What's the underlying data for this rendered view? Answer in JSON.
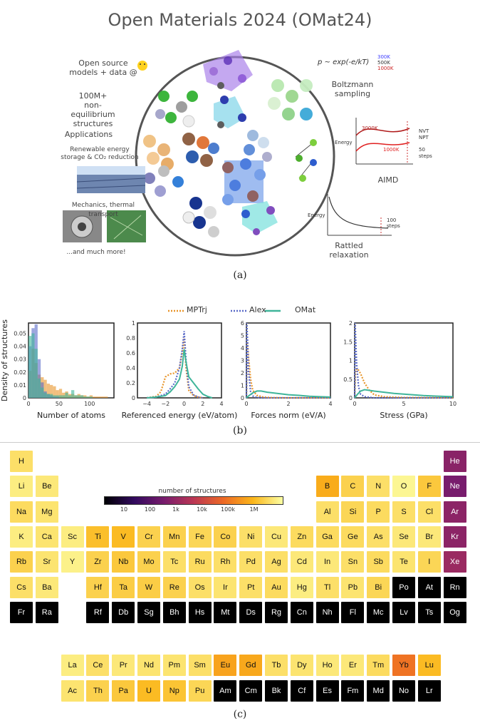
{
  "panel_a": {
    "title": "Open Materials 2024 (OMat24)",
    "open_source": "Open source\nmodels + data  @",
    "structures": "100M+\nnon-equilibrium\nstructures",
    "applications": "Applications",
    "renewable": "Renewable energy\nstorage & CO₂ reduction",
    "mechanics": "Mechanics, thermal transport",
    "more": "...and much more!",
    "boltzmann_formula": "p ~ exp(-e/kT)",
    "temps": [
      "300K",
      "500K",
      "1000K"
    ],
    "boltzmann": "Boltzmann\nsampling",
    "aimd_temps": [
      "3000K",
      "1000K"
    ],
    "nvt": "NVT\nNPT",
    "steps50": "50\nsteps",
    "energy": "Energy",
    "aimd": "AIMD",
    "steps100": "100\nsteps",
    "rattled": "Rattled\nrelaxation",
    "caption": "(a)",
    "colors": {
      "300K": "#3b3bff",
      "500K": "#333333",
      "1000K": "#cc2222"
    }
  },
  "panel_b": {
    "caption": "(b)",
    "legend": [
      "MPTrj",
      "Alex",
      "OMat"
    ],
    "colors": {
      "MPTrj": "#e8952a",
      "Alex": "#5a6bc8",
      "OMat": "#3fb59a"
    },
    "y_shared_label": "Density of structures"
  },
  "chart_data": [
    {
      "type": "bar",
      "xlabel": "Number of atoms",
      "ylabel": "Density of structures",
      "xlim": [
        0,
        140
      ],
      "ylim": [
        0,
        0.058
      ],
      "xticks": [
        "0",
        "50",
        "100"
      ],
      "yticks": [
        "0",
        "0.01",
        "0.02",
        "0.03",
        "0.04",
        "0.05"
      ],
      "bin_width": 5,
      "bin_starts": [
        0,
        5,
        10,
        15,
        20,
        25,
        30,
        35,
        40,
        45,
        50,
        55,
        60,
        65,
        70,
        75,
        80,
        85,
        90,
        95,
        100,
        105,
        110,
        115,
        120,
        125
      ],
      "series": [
        {
          "name": "MPTrj",
          "values": [
            0.021,
            0.038,
            0.027,
            0.018,
            0.016,
            0.014,
            0.011,
            0.01,
            0.009,
            0.006,
            0.007,
            0.004,
            0.005,
            0.003,
            0.003,
            0.002,
            0.003,
            0.002,
            0.002,
            0.001,
            0.002,
            0.001,
            0.001,
            0.001,
            0.001,
            0.001
          ]
        },
        {
          "name": "Alex",
          "values": [
            0.04,
            0.054,
            0.057,
            0.03,
            0.012,
            0.005,
            0.003,
            0.002,
            0.001,
            0.001,
            0,
            0,
            0,
            0,
            0,
            0,
            0,
            0,
            0,
            0,
            0,
            0,
            0,
            0,
            0,
            0
          ]
        },
        {
          "name": "OMat",
          "values": [
            0.048,
            0.05,
            0.038,
            0.015,
            0.008,
            0.004,
            0.003,
            0.003,
            0.002,
            0.002,
            0.002,
            0.002,
            0.004,
            0.002,
            0.006,
            0.002,
            0.002,
            0.002,
            0.001,
            0.001,
            0.001,
            0,
            0,
            0,
            0,
            0
          ]
        }
      ]
    },
    {
      "type": "line",
      "xlabel": "Referenced energy (eV/atom)",
      "xlim": [
        -5,
        4
      ],
      "ylim": [
        0,
        1
      ],
      "xticks": [
        "−4",
        "−2",
        "0",
        "2",
        "4"
      ],
      "yticks": [
        "0",
        "0.2",
        "0.4",
        "0.6",
        "0.8",
        "1"
      ],
      "series": [
        {
          "name": "MPTrj",
          "x": [
            -4,
            -3,
            -2.5,
            -2,
            -1.5,
            -1,
            -0.5,
            -0.2,
            0,
            0.2,
            0.5,
            1,
            1.5,
            2
          ],
          "y": [
            0,
            0.02,
            0.08,
            0.28,
            0.32,
            0.33,
            0.4,
            0.6,
            0.8,
            0.4,
            0.1,
            0.03,
            0.01,
            0
          ]
        },
        {
          "name": "Alex",
          "x": [
            -4,
            -3,
            -2,
            -1.5,
            -1,
            -0.5,
            -0.2,
            0,
            0.2,
            0.5,
            1,
            1.5,
            2
          ],
          "y": [
            0,
            0.01,
            0.05,
            0.12,
            0.2,
            0.4,
            0.65,
            0.89,
            0.5,
            0.15,
            0.04,
            0.01,
            0
          ]
        },
        {
          "name": "OMat",
          "x": [
            -4,
            -3,
            -2,
            -1.5,
            -1,
            -0.5,
            -0.2,
            0,
            0.2,
            0.5,
            1,
            1.5,
            2,
            2.5,
            3
          ],
          "y": [
            0,
            0.01,
            0.03,
            0.08,
            0.15,
            0.25,
            0.42,
            0.65,
            0.48,
            0.28,
            0.2,
            0.12,
            0.05,
            0.02,
            0
          ]
        }
      ]
    },
    {
      "type": "line",
      "xlabel": "Forces norm (eV/A)",
      "xlim": [
        0,
        4
      ],
      "ylim": [
        0,
        6
      ],
      "xticks": [
        "0",
        "2",
        "4"
      ],
      "yticks": [
        "0",
        "1",
        "2",
        "3",
        "4",
        "5",
        "6"
      ],
      "series": [
        {
          "name": "MPTrj",
          "x": [
            0,
            0.05,
            0.1,
            0.2,
            0.3,
            0.5,
            0.8,
            1.2,
            2,
            4
          ],
          "y": [
            0,
            4.5,
            3.3,
            1.5,
            0.6,
            0.2,
            0.06,
            0.02,
            0,
            0
          ]
        },
        {
          "name": "Alex",
          "x": [
            0,
            0.02,
            0.05,
            0.1,
            0.2,
            0.3,
            0.5,
            1,
            2,
            4
          ],
          "y": [
            0,
            6,
            4.8,
            2.2,
            0.5,
            0.15,
            0.03,
            0,
            0,
            0
          ]
        },
        {
          "name": "OMat",
          "x": [
            0,
            0.1,
            0.3,
            0.5,
            0.7,
            1,
            1.5,
            2,
            2.5,
            3,
            3.5,
            4
          ],
          "y": [
            0,
            0.15,
            0.4,
            0.55,
            0.55,
            0.45,
            0.35,
            0.25,
            0.2,
            0.13,
            0.09,
            0.06
          ]
        }
      ]
    },
    {
      "type": "line",
      "xlabel": "Stress (GPa)",
      "xlim": [
        0,
        10
      ],
      "ylim": [
        0,
        2
      ],
      "xticks": [
        "0",
        "5",
        "10"
      ],
      "yticks": [
        "0",
        "0.5",
        "1",
        "1.5",
        "2"
      ],
      "series": [
        {
          "name": "MPTrj",
          "x": [
            0,
            0.1,
            0.3,
            0.6,
            1,
            1.5,
            2,
            3,
            5,
            10
          ],
          "y": [
            0,
            0.75,
            0.78,
            0.65,
            0.4,
            0.2,
            0.08,
            0.03,
            0.01,
            0
          ]
        },
        {
          "name": "Alex",
          "x": [
            0,
            0.05,
            0.1,
            0.2,
            0.4,
            0.6,
            1,
            2,
            5,
            10
          ],
          "y": [
            0,
            2,
            1.6,
            0.9,
            0.3,
            0.1,
            0.03,
            0,
            0,
            0
          ]
        },
        {
          "name": "OMat",
          "x": [
            0,
            0.3,
            0.6,
            1,
            1.5,
            2,
            3,
            4,
            5,
            6,
            7,
            8,
            9,
            10
          ],
          "y": [
            0,
            0.1,
            0.18,
            0.22,
            0.2,
            0.18,
            0.15,
            0.12,
            0.1,
            0.08,
            0.06,
            0.05,
            0.04,
            0.03
          ]
        }
      ]
    }
  ],
  "panel_c": {
    "caption": "(c)",
    "colorbar_title": "number of structures",
    "colorbar_ticks": [
      "10",
      "100",
      "1k",
      "10k",
      "100k",
      "1M"
    ],
    "elements": [
      {
        "s": "H",
        "c": 1,
        "r": 1,
        "v": 0.93
      },
      {
        "s": "He",
        "c": 18,
        "r": 1,
        "v": 0.35
      },
      {
        "s": "Li",
        "c": 1,
        "r": 2,
        "v": 0.96
      },
      {
        "s": "Be",
        "c": 2,
        "r": 2,
        "v": 0.95
      },
      {
        "s": "B",
        "c": 13,
        "r": 2,
        "v": 0.82
      },
      {
        "s": "C",
        "c": 14,
        "r": 2,
        "v": 0.9
      },
      {
        "s": "N",
        "c": 15,
        "r": 2,
        "v": 0.93
      },
      {
        "s": "O",
        "c": 16,
        "r": 2,
        "v": 0.98
      },
      {
        "s": "F",
        "c": 17,
        "r": 2,
        "v": 0.88
      },
      {
        "s": "Ne",
        "c": 18,
        "r": 2,
        "v": 0.3
      },
      {
        "s": "Na",
        "c": 1,
        "r": 3,
        "v": 0.92
      },
      {
        "s": "Mg",
        "c": 2,
        "r": 3,
        "v": 0.94
      },
      {
        "s": "Al",
        "c": 13,
        "r": 3,
        "v": 0.93
      },
      {
        "s": "Si",
        "c": 14,
        "r": 3,
        "v": 0.91
      },
      {
        "s": "P",
        "c": 15,
        "r": 3,
        "v": 0.92
      },
      {
        "s": "S",
        "c": 16,
        "r": 3,
        "v": 0.93
      },
      {
        "s": "Cl",
        "c": 17,
        "r": 3,
        "v": 0.93
      },
      {
        "s": "Ar",
        "c": 18,
        "r": 3,
        "v": 0.36
      },
      {
        "s": "K",
        "c": 1,
        "r": 4,
        "v": 0.96
      },
      {
        "s": "Ca",
        "c": 2,
        "r": 4,
        "v": 0.94
      },
      {
        "s": "Sc",
        "c": 3,
        "r": 4,
        "v": 0.96
      },
      {
        "s": "Ti",
        "c": 4,
        "r": 4,
        "v": 0.86
      },
      {
        "s": "V",
        "c": 5,
        "r": 4,
        "v": 0.85
      },
      {
        "s": "Cr",
        "c": 6,
        "r": 4,
        "v": 0.9
      },
      {
        "s": "Mn",
        "c": 7,
        "r": 4,
        "v": 0.9
      },
      {
        "s": "Fe",
        "c": 8,
        "r": 4,
        "v": 0.91
      },
      {
        "s": "Co",
        "c": 9,
        "r": 4,
        "v": 0.9
      },
      {
        "s": "Ni",
        "c": 10,
        "r": 4,
        "v": 0.93
      },
      {
        "s": "Cu",
        "c": 11,
        "r": 4,
        "v": 0.95
      },
      {
        "s": "Zn",
        "c": 12,
        "r": 4,
        "v": 0.92
      },
      {
        "s": "Ga",
        "c": 13,
        "r": 4,
        "v": 0.92
      },
      {
        "s": "Ge",
        "c": 14,
        "r": 4,
        "v": 0.92
      },
      {
        "s": "As",
        "c": 15,
        "r": 4,
        "v": 0.93
      },
      {
        "s": "Se",
        "c": 16,
        "r": 4,
        "v": 0.95
      },
      {
        "s": "Br",
        "c": 17,
        "r": 4,
        "v": 0.95
      },
      {
        "s": "Kr",
        "c": 18,
        "r": 4,
        "v": 0.36
      },
      {
        "s": "Rb",
        "c": 1,
        "r": 5,
        "v": 0.9
      },
      {
        "s": "Sr",
        "c": 2,
        "r": 5,
        "v": 0.94
      },
      {
        "s": "Y",
        "c": 3,
        "r": 5,
        "v": 0.97
      },
      {
        "s": "Zr",
        "c": 4,
        "r": 5,
        "v": 0.9
      },
      {
        "s": "Nb",
        "c": 5,
        "r": 5,
        "v": 0.88
      },
      {
        "s": "Mo",
        "c": 6,
        "r": 5,
        "v": 0.9
      },
      {
        "s": "Tc",
        "c": 7,
        "r": 5,
        "v": 0.93
      },
      {
        "s": "Ru",
        "c": 8,
        "r": 5,
        "v": 0.92
      },
      {
        "s": "Rh",
        "c": 9,
        "r": 5,
        "v": 0.93
      },
      {
        "s": "Pd",
        "c": 10,
        "r": 5,
        "v": 0.93
      },
      {
        "s": "Ag",
        "c": 11,
        "r": 5,
        "v": 0.93
      },
      {
        "s": "Cd",
        "c": 12,
        "r": 5,
        "v": 0.95
      },
      {
        "s": "In",
        "c": 13,
        "r": 5,
        "v": 0.95
      },
      {
        "s": "Sn",
        "c": 14,
        "r": 5,
        "v": 0.93
      },
      {
        "s": "Sb",
        "c": 15,
        "r": 5,
        "v": 0.92
      },
      {
        "s": "Te",
        "c": 16,
        "r": 5,
        "v": 0.94
      },
      {
        "s": "I",
        "c": 17,
        "r": 5,
        "v": 0.91
      },
      {
        "s": "Xe",
        "c": 18,
        "r": 5,
        "v": 0.4
      },
      {
        "s": "Cs",
        "c": 1,
        "r": 6,
        "v": 0.93
      },
      {
        "s": "Ba",
        "c": 2,
        "r": 6,
        "v": 0.95
      },
      {
        "s": "Hf",
        "c": 4,
        "r": 6,
        "v": 0.9
      },
      {
        "s": "Ta",
        "c": 5,
        "r": 6,
        "v": 0.89
      },
      {
        "s": "W",
        "c": 6,
        "r": 6,
        "v": 0.89
      },
      {
        "s": "Re",
        "c": 7,
        "r": 6,
        "v": 0.9
      },
      {
        "s": "Os",
        "c": 8,
        "r": 6,
        "v": 0.93
      },
      {
        "s": "Ir",
        "c": 9,
        "r": 6,
        "v": 0.94
      },
      {
        "s": "Pt",
        "c": 10,
        "r": 6,
        "v": 0.93
      },
      {
        "s": "Au",
        "c": 11,
        "r": 6,
        "v": 0.92
      },
      {
        "s": "Hg",
        "c": 12,
        "r": 6,
        "v": 0.96
      },
      {
        "s": "Tl",
        "c": 13,
        "r": 6,
        "v": 0.93
      },
      {
        "s": "Pb",
        "c": 14,
        "r": 6,
        "v": 0.94
      },
      {
        "s": "Bi",
        "c": 15,
        "r": 6,
        "v": 0.91
      },
      {
        "s": "Po",
        "c": 16,
        "r": 6,
        "v": 0
      },
      {
        "s": "At",
        "c": 17,
        "r": 6,
        "v": 0
      },
      {
        "s": "Rn",
        "c": 18,
        "r": 6,
        "v": 0
      },
      {
        "s": "Fr",
        "c": 1,
        "r": 7,
        "v": 0
      },
      {
        "s": "Ra",
        "c": 2,
        "r": 7,
        "v": 0
      },
      {
        "s": "Rf",
        "c": 4,
        "r": 7,
        "v": 0
      },
      {
        "s": "Db",
        "c": 5,
        "r": 7,
        "v": 0
      },
      {
        "s": "Sg",
        "c": 6,
        "r": 7,
        "v": 0
      },
      {
        "s": "Bh",
        "c": 7,
        "r": 7,
        "v": 0
      },
      {
        "s": "Hs",
        "c": 8,
        "r": 7,
        "v": 0
      },
      {
        "s": "Mt",
        "c": 9,
        "r": 7,
        "v": 0
      },
      {
        "s": "Ds",
        "c": 10,
        "r": 7,
        "v": 0
      },
      {
        "s": "Rg",
        "c": 11,
        "r": 7,
        "v": 0
      },
      {
        "s": "Cn",
        "c": 12,
        "r": 7,
        "v": 0
      },
      {
        "s": "Nh",
        "c": 13,
        "r": 7,
        "v": 0
      },
      {
        "s": "Fl",
        "c": 14,
        "r": 7,
        "v": 0
      },
      {
        "s": "Mc",
        "c": 15,
        "r": 7,
        "v": 0
      },
      {
        "s": "Lv",
        "c": 16,
        "r": 7,
        "v": 0
      },
      {
        "s": "Ts",
        "c": 17,
        "r": 7,
        "v": 0
      },
      {
        "s": "Og",
        "c": 18,
        "r": 7,
        "v": 0
      },
      {
        "s": "La",
        "c": 3,
        "r": 9,
        "v": 0.96
      },
      {
        "s": "Ce",
        "c": 4,
        "r": 9,
        "v": 0.93
      },
      {
        "s": "Pr",
        "c": 5,
        "r": 9,
        "v": 0.95
      },
      {
        "s": "Nd",
        "c": 6,
        "r": 9,
        "v": 0.94
      },
      {
        "s": "Pm",
        "c": 7,
        "r": 9,
        "v": 0.94
      },
      {
        "s": "Sm",
        "c": 8,
        "r": 9,
        "v": 0.93
      },
      {
        "s": "Eu",
        "c": 9,
        "r": 9,
        "v": 0.8
      },
      {
        "s": "Gd",
        "c": 10,
        "r": 9,
        "v": 0.81
      },
      {
        "s": "Tb",
        "c": 11,
        "r": 9,
        "v": 0.93
      },
      {
        "s": "Dy",
        "c": 12,
        "r": 9,
        "v": 0.94
      },
      {
        "s": "Ho",
        "c": 13,
        "r": 9,
        "v": 0.95
      },
      {
        "s": "Er",
        "c": 14,
        "r": 9,
        "v": 0.95
      },
      {
        "s": "Tm",
        "c": 15,
        "r": 9,
        "v": 0.92
      },
      {
        "s": "Yb",
        "c": 16,
        "r": 9,
        "v": 0.7
      },
      {
        "s": "Lu",
        "c": 17,
        "r": 9,
        "v": 0.85
      },
      {
        "s": "Ac",
        "c": 3,
        "r": 10,
        "v": 0.94
      },
      {
        "s": "Th",
        "c": 4,
        "r": 10,
        "v": 0.9
      },
      {
        "s": "Pa",
        "c": 5,
        "r": 10,
        "v": 0.88
      },
      {
        "s": "U",
        "c": 6,
        "r": 10,
        "v": 0.85
      },
      {
        "s": "Np",
        "c": 7,
        "r": 10,
        "v": 0.87
      },
      {
        "s": "Pu",
        "c": 8,
        "r": 10,
        "v": 0.91
      },
      {
        "s": "Am",
        "c": 9,
        "r": 10,
        "v": 0
      },
      {
        "s": "Cm",
        "c": 10,
        "r": 10,
        "v": 0
      },
      {
        "s": "Bk",
        "c": 11,
        "r": 10,
        "v": 0
      },
      {
        "s": "Cf",
        "c": 12,
        "r": 10,
        "v": 0
      },
      {
        "s": "Es",
        "c": 13,
        "r": 10,
        "v": 0
      },
      {
        "s": "Fm",
        "c": 14,
        "r": 10,
        "v": 0
      },
      {
        "s": "Md",
        "c": 15,
        "r": 10,
        "v": 0
      },
      {
        "s": "No",
        "c": 16,
        "r": 10,
        "v": 0
      },
      {
        "s": "Lr",
        "c": 17,
        "r": 10,
        "v": 0
      }
    ]
  }
}
